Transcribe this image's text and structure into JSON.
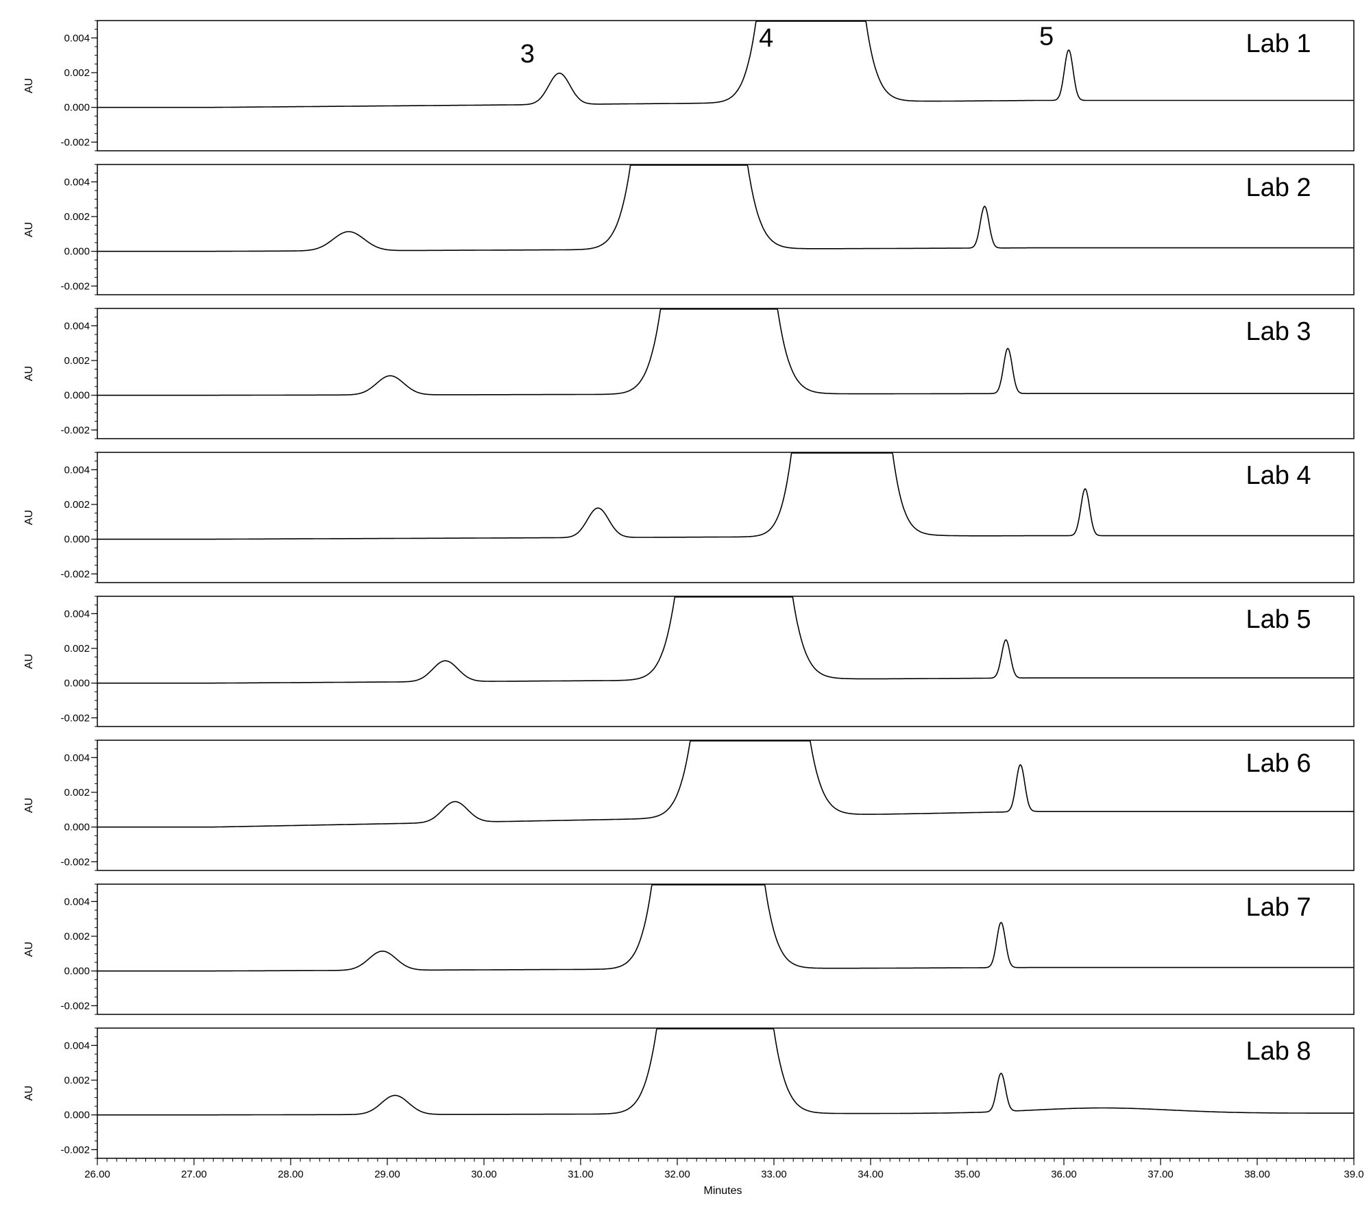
{
  "chart_data": {
    "type": "line",
    "layout": "stacked-panels",
    "xlabel": "Minutes",
    "ylabel": "AU",
    "xlim": [
      26.0,
      39.0
    ],
    "ylim": [
      -0.0025,
      0.005
    ],
    "x_ticks": [
      "26.00",
      "27.00",
      "28.00",
      "29.00",
      "30.00",
      "31.00",
      "32.00",
      "33.00",
      "34.00",
      "35.00",
      "36.00",
      "37.00",
      "38.00",
      "39.0"
    ],
    "y_ticks": [
      "0.004",
      "0.002",
      "0.000",
      "-0.002"
    ],
    "peak_annotations": [
      {
        "text": "3",
        "panel": 0,
        "x": 30.45,
        "y": 0.0026
      },
      {
        "text": "4",
        "panel": 0,
        "x": 32.92,
        "y": 0.0035
      },
      {
        "text": "5",
        "panel": 0,
        "x": 35.82,
        "y": 0.0036
      }
    ],
    "series": [
      {
        "name": "Lab 1",
        "baseline": [
          0.0,
          0.0004
        ],
        "peaks": [
          {
            "center": 30.78,
            "height": 0.0018,
            "width": 0.11
          },
          {
            "center": 33.38,
            "height": 0.05,
            "width": 0.26,
            "tail": 0.0025
          },
          {
            "center": 36.05,
            "height": 0.0029,
            "width": 0.045
          }
        ]
      },
      {
        "name": "Lab 2",
        "baseline": [
          0.0,
          0.0002
        ],
        "peaks": [
          {
            "center": 28.6,
            "height": 0.0011,
            "width": 0.16
          },
          {
            "center": 32.12,
            "height": 0.05,
            "width": 0.28,
            "tail": 0.0015
          },
          {
            "center": 35.18,
            "height": 0.0024,
            "width": 0.045
          }
        ]
      },
      {
        "name": "Lab 3",
        "baseline": [
          0.0,
          0.0001
        ],
        "peaks": [
          {
            "center": 29.03,
            "height": 0.0011,
            "width": 0.14
          },
          {
            "center": 32.43,
            "height": 0.05,
            "width": 0.28,
            "tail": 0.0025
          },
          {
            "center": 35.42,
            "height": 0.0026,
            "width": 0.045
          }
        ]
      },
      {
        "name": "Lab 4",
        "baseline": [
          0.0,
          0.0002
        ],
        "peaks": [
          {
            "center": 31.18,
            "height": 0.0017,
            "width": 0.11
          },
          {
            "center": 33.7,
            "height": 0.05,
            "width": 0.24,
            "tail": 0.004
          },
          {
            "center": 36.22,
            "height": 0.0027,
            "width": 0.045
          }
        ]
      },
      {
        "name": "Lab 5",
        "baseline": [
          0.0,
          0.0003
        ],
        "peaks": [
          {
            "center": 29.6,
            "height": 0.0012,
            "width": 0.13
          },
          {
            "center": 32.58,
            "height": 0.05,
            "width": 0.28,
            "tail": 0.004
          },
          {
            "center": 35.4,
            "height": 0.0022,
            "width": 0.045
          }
        ]
      },
      {
        "name": "Lab 6",
        "baseline": [
          0.0,
          0.0009
        ],
        "peaks": [
          {
            "center": 29.7,
            "height": 0.0012,
            "width": 0.13
          },
          {
            "center": 32.75,
            "height": 0.05,
            "width": 0.28,
            "tail": 0.003
          },
          {
            "center": 35.55,
            "height": 0.0027,
            "width": 0.045
          }
        ]
      },
      {
        "name": "Lab 7",
        "baseline": [
          0.0,
          0.0002
        ],
        "peaks": [
          {
            "center": 28.95,
            "height": 0.0011,
            "width": 0.14
          },
          {
            "center": 32.32,
            "height": 0.05,
            "width": 0.27,
            "tail": 0.0015
          },
          {
            "center": 35.35,
            "height": 0.0026,
            "width": 0.045
          }
        ]
      },
      {
        "name": "Lab 8",
        "baseline": [
          0.0,
          0.0001
        ],
        "peaks": [
          {
            "center": 29.08,
            "height": 0.0011,
            "width": 0.14
          },
          {
            "center": 32.39,
            "height": 0.05,
            "width": 0.28,
            "tail": 0.0025
          },
          {
            "center": 35.35,
            "height": 0.0022,
            "width": 0.045
          },
          {
            "center": 36.4,
            "height": 0.0003,
            "width": 0.7
          }
        ]
      }
    ]
  }
}
